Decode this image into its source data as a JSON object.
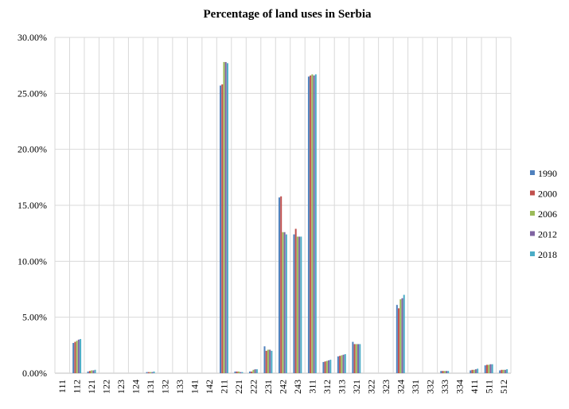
{
  "chart_data": {
    "type": "bar",
    "title": "Percentage of land uses in Serbia",
    "xlabel": "",
    "ylabel": "",
    "ylim": [
      0,
      30
    ],
    "y_ticks": [
      "0.00%",
      "5.00%",
      "10.00%",
      "15.00%",
      "20.00%",
      "25.00%",
      "30.00%"
    ],
    "grid": true,
    "legend_position": "right",
    "categories": [
      "111",
      "112",
      "121",
      "122",
      "123",
      "124",
      "131",
      "132",
      "133",
      "141",
      "142",
      "211",
      "221",
      "222",
      "231",
      "242",
      "243",
      "311",
      "312",
      "313",
      "321",
      "322",
      "323",
      "324",
      "331",
      "332",
      "333",
      "334",
      "411",
      "511",
      "512"
    ],
    "series": [
      {
        "name": "1990",
        "color": "#4f81bd",
        "values": [
          0,
          2.7,
          0.15,
          0,
          0,
          0,
          0.1,
          0,
          0,
          0,
          0,
          25.7,
          0.15,
          0.15,
          2.4,
          15.7,
          12.4,
          26.5,
          1.0,
          1.5,
          2.8,
          0,
          0,
          6.1,
          0,
          0,
          0.2,
          0,
          0.25,
          0.7,
          0.25
        ]
      },
      {
        "name": "2000",
        "color": "#c0504d",
        "values": [
          0,
          2.8,
          0.2,
          0,
          0,
          0,
          0.1,
          0,
          0,
          0,
          0,
          25.8,
          0.15,
          0.15,
          2.0,
          15.8,
          12.9,
          26.6,
          1.05,
          1.55,
          2.6,
          0,
          0,
          5.8,
          0,
          0,
          0.2,
          0,
          0.3,
          0.75,
          0.3
        ]
      },
      {
        "name": "2006",
        "color": "#9bbb59",
        "values": [
          0,
          2.9,
          0.25,
          0,
          0,
          0,
          0.1,
          0,
          0,
          0,
          0,
          27.8,
          0.15,
          0.3,
          2.1,
          12.6,
          12.2,
          26.7,
          1.1,
          1.6,
          2.6,
          0,
          0,
          6.6,
          0,
          0,
          0.2,
          0,
          0.3,
          0.75,
          0.3
        ]
      },
      {
        "name": "2012",
        "color": "#8064a2",
        "values": [
          0,
          3.0,
          0.25,
          0,
          0,
          0,
          0.1,
          0,
          0,
          0,
          0,
          27.8,
          0.1,
          0.35,
          2.1,
          12.6,
          12.2,
          26.6,
          1.15,
          1.65,
          2.6,
          0,
          0,
          6.7,
          0,
          0,
          0.2,
          0,
          0.35,
          0.8,
          0.3
        ]
      },
      {
        "name": "2018",
        "color": "#4bacc6",
        "values": [
          0,
          3.05,
          0.3,
          0,
          0,
          0,
          0.15,
          0,
          0,
          0,
          0,
          27.7,
          0.1,
          0.35,
          2.0,
          12.4,
          12.2,
          26.7,
          1.2,
          1.7,
          2.6,
          0,
          0,
          7.0,
          0,
          0,
          0.2,
          0,
          0.4,
          0.8,
          0.35
        ]
      }
    ]
  }
}
